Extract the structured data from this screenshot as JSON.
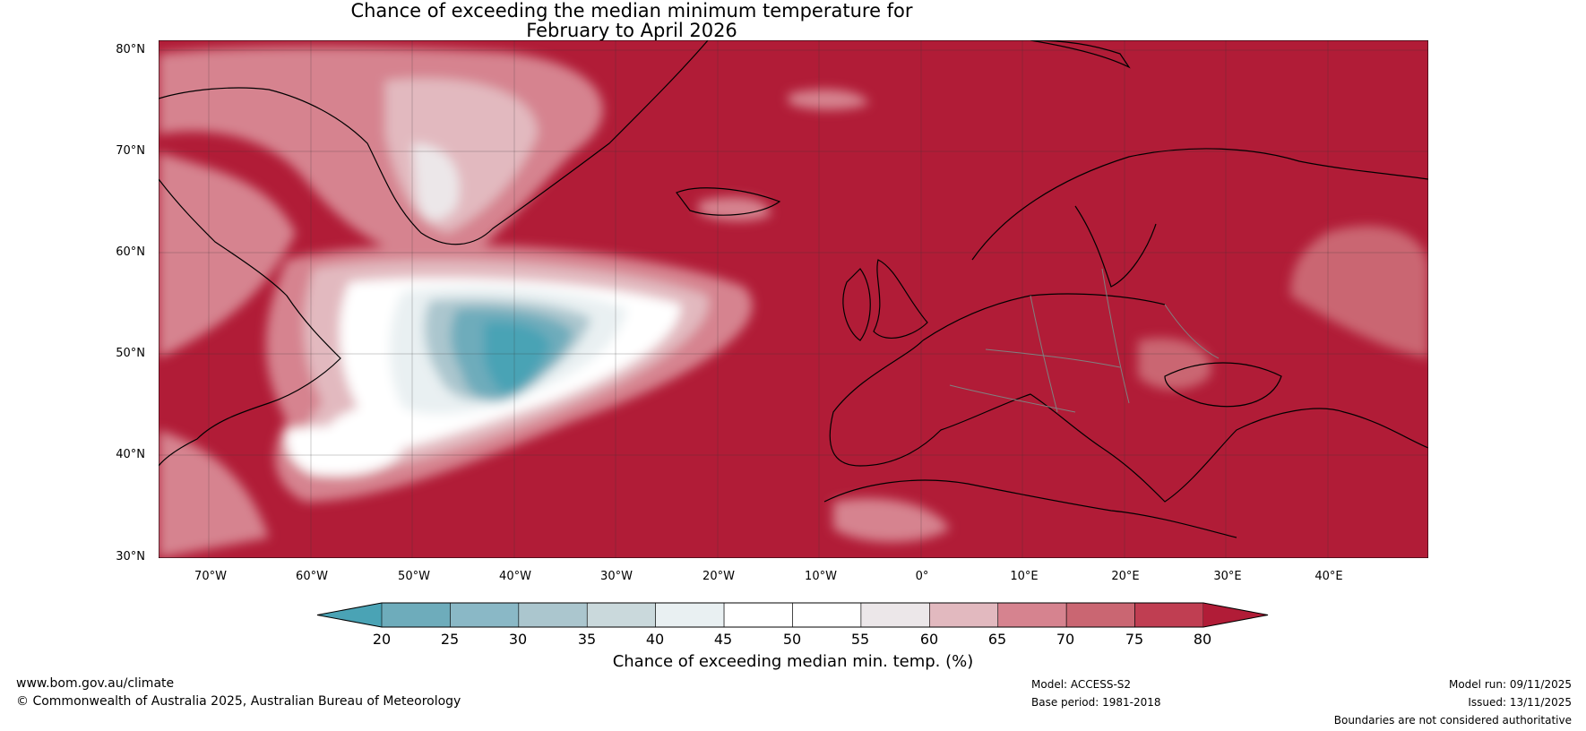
{
  "title": {
    "line1": "Chance of exceeding the median minimum temperature for",
    "line2": "February to April 2026"
  },
  "map": {
    "lat_labels": [
      "80°N",
      "70°N",
      "60°N",
      "50°N",
      "40°N",
      "30°N"
    ],
    "lon_labels": [
      "70°W",
      "60°W",
      "50°W",
      "40°W",
      "30°W",
      "20°W",
      "10°W",
      "0°",
      "10°E",
      "20°E",
      "30°E",
      "40°E"
    ],
    "colors": {
      "background": "#b11c37",
      "land_outline": "#000000",
      "border": "#808080"
    }
  },
  "colorbar": {
    "ticks": [
      "20",
      "25",
      "30",
      "35",
      "40",
      "45",
      "50",
      "55",
      "60",
      "65",
      "70",
      "75",
      "80"
    ],
    "label": "Chance of exceeding median min. temp. (%)",
    "colors": [
      "#4aa3b5",
      "#6eacbb",
      "#8ab8c6",
      "#abc6ce",
      "#cad9dc",
      "#e9f0f2",
      "#ffffff",
      "#ffffff",
      "#ece7e9",
      "#e2b9bf",
      "#d6838f",
      "#ca6672",
      "#c03e52",
      "#b11c37"
    ]
  },
  "footer": {
    "website": "www.bom.gov.au/climate",
    "copyright": "© Commonwealth of Australia 2025, Australian Bureau of Meteorology",
    "model": "Model: ACCESS-S2",
    "base_period": "Base period: 1981-2018",
    "model_run": "Model run: 09/11/2025",
    "issued": "Issued: 13/11/2025",
    "disclaimer": "Boundaries are not considered authoritative"
  }
}
